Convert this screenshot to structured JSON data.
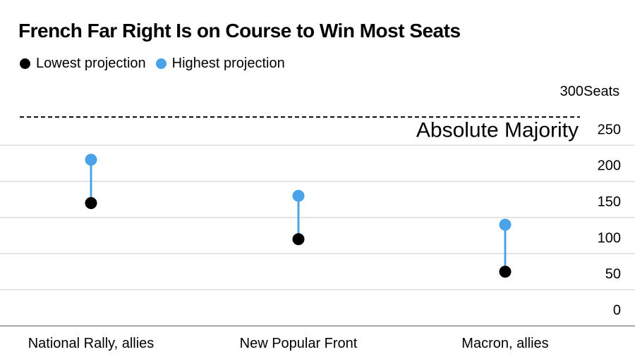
{
  "chart_data": {
    "type": "dumbbell",
    "title": "French Far Right Is on Course to Win Most Seats",
    "categories": [
      "National Rally, allies",
      "New Popular Front",
      "Macron, allies"
    ],
    "series": [
      {
        "name": "Lowest projection",
        "color": "#000000",
        "values": [
          170,
          120,
          75
        ]
      },
      {
        "name": "Highest projection",
        "color": "#4aa3e8",
        "values": [
          230,
          180,
          140
        ]
      }
    ],
    "connector_color": "#4aa3e8",
    "ylim": [
      0,
      300
    ],
    "yticks": [
      "0",
      "50",
      "100",
      "150",
      "200",
      "250",
      "300"
    ],
    "y_unit": "Seats",
    "reference_line": {
      "value": 289,
      "label": "Absolute Majority",
      "style": "dashed"
    },
    "grid": true,
    "legend_position": "top-left"
  }
}
